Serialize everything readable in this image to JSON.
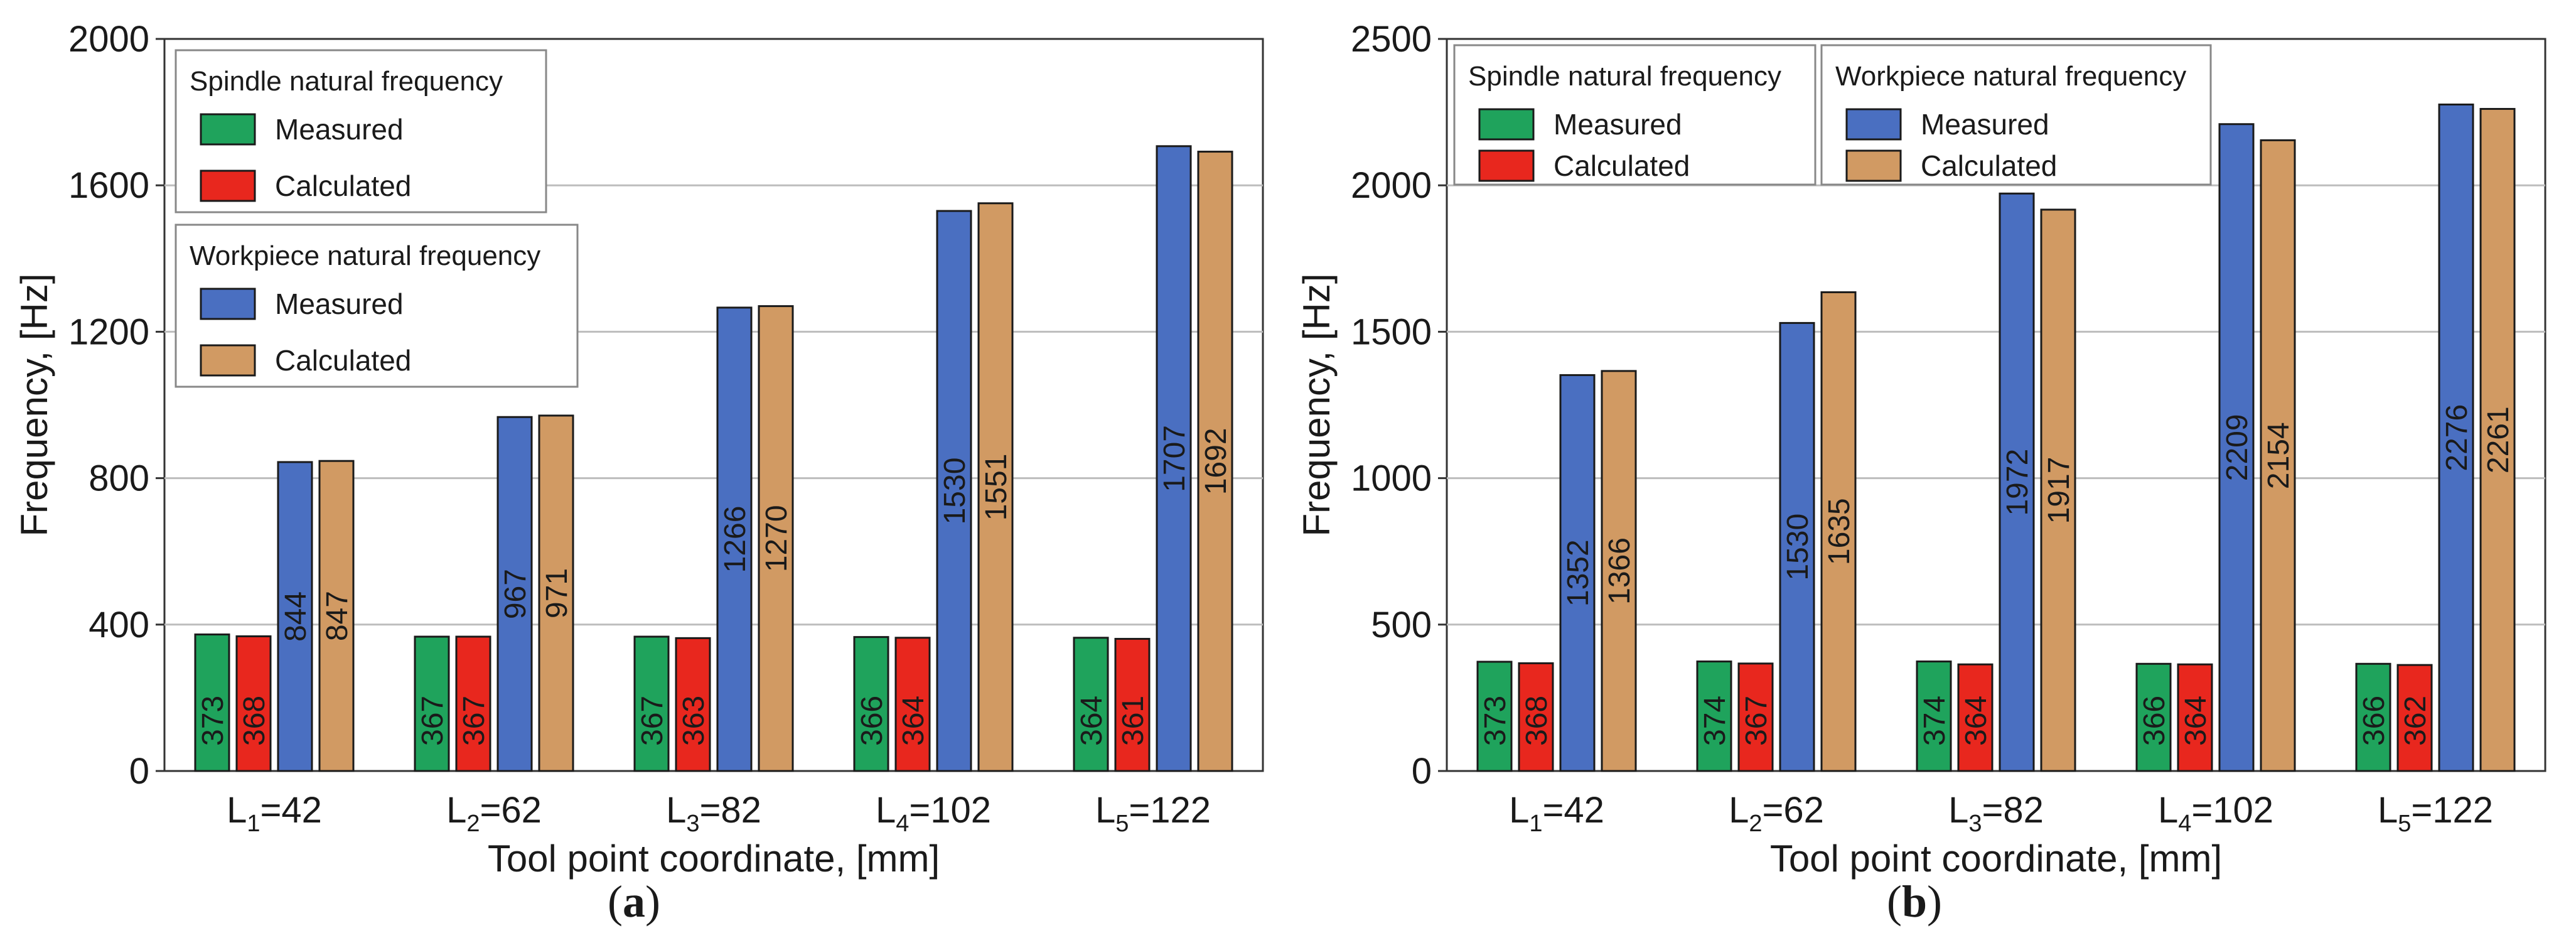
{
  "colors": {
    "spindle_measured": "#1fa35c",
    "spindle_calculated": "#e8271e",
    "workpiece_measured": "#4a6fc1",
    "workpiece_calculated": "#d19a63",
    "grid": "#bdbdbd",
    "axis": "#333333"
  },
  "chart_data": [
    {
      "type": "bar",
      "panel": "a",
      "panel_label": "a",
      "xlabel": "Tool point coordinate, [mm]",
      "ylabel": "Frequency, [Hz]",
      "ylim": [
        0,
        2000
      ],
      "yticks": [
        0,
        400,
        800,
        1200,
        1600,
        2000
      ],
      "ytick_labels": [
        "0",
        "400",
        "800",
        "1200",
        "1600",
        "2000"
      ],
      "categories": [
        {
          "base": "L",
          "sub": "1",
          "rest": "=42"
        },
        {
          "base": "L",
          "sub": "2",
          "rest": "=62"
        },
        {
          "base": "L",
          "sub": "3",
          "rest": "=82"
        },
        {
          "base": "L",
          "sub": "4",
          "rest": "=102"
        },
        {
          "base": "L",
          "sub": "5",
          "rest": "=122"
        }
      ],
      "series": [
        {
          "name": "Spindle natural frequency Measured",
          "color_key": "spindle_measured",
          "values": [
            373,
            367,
            367,
            366,
            364
          ]
        },
        {
          "name": "Spindle natural frequency Calculated",
          "color_key": "spindle_calculated",
          "values": [
            368,
            367,
            363,
            364,
            361
          ]
        },
        {
          "name": "Workpiece natural frequency Measured",
          "color_key": "workpiece_measured",
          "values": [
            844,
            967,
            1266,
            1530,
            1707
          ]
        },
        {
          "name": "Workpiece natural frequency Calculated",
          "color_key": "workpiece_calculated",
          "values": [
            847,
            971,
            1270,
            1551,
            1692
          ]
        }
      ],
      "legends": [
        {
          "title": "Spindle natural frequency",
          "entries": [
            {
              "label": "Measured",
              "color_key": "spindle_measured"
            },
            {
              "label": "Calculated",
              "color_key": "spindle_calculated"
            }
          ]
        },
        {
          "title": "Workpiece natural frequency",
          "entries": [
            {
              "label": "Measured",
              "color_key": "workpiece_measured"
            },
            {
              "label": "Calculated",
              "color_key": "workpiece_calculated"
            }
          ]
        }
      ],
      "legend_layout": "stacked-top-left",
      "grid": true
    },
    {
      "type": "bar",
      "panel": "b",
      "panel_label": "b",
      "xlabel": "Tool point coordinate, [mm]",
      "ylabel": "Frequency, [Hz]",
      "ylim": [
        0,
        2500
      ],
      "yticks": [
        0,
        500,
        1000,
        1500,
        2000,
        2500
      ],
      "ytick_labels": [
        "0",
        "500",
        "1000",
        "1500",
        "2000",
        "2500"
      ],
      "categories": [
        {
          "base": "L",
          "sub": "1",
          "rest": "=42"
        },
        {
          "base": "L",
          "sub": "2",
          "rest": "=62"
        },
        {
          "base": "L",
          "sub": "3",
          "rest": "=82"
        },
        {
          "base": "L",
          "sub": "4",
          "rest": "=102"
        },
        {
          "base": "L",
          "sub": "5",
          "rest": "=122"
        }
      ],
      "series": [
        {
          "name": "Spindle natural frequency Measured",
          "color_key": "spindle_measured",
          "values": [
            373,
            374,
            374,
            366,
            366
          ]
        },
        {
          "name": "Spindle natural frequency Calculated",
          "color_key": "spindle_calculated",
          "values": [
            368,
            367,
            364,
            364,
            362
          ]
        },
        {
          "name": "Workpiece natural frequency Measured",
          "color_key": "workpiece_measured",
          "values": [
            1352,
            1530,
            1972,
            2209,
            2276
          ]
        },
        {
          "name": "Workpiece natural frequency Calculated",
          "color_key": "workpiece_calculated",
          "values": [
            1366,
            1635,
            1917,
            2154,
            2261
          ]
        }
      ],
      "legends": [
        {
          "title": "Spindle natural frequency",
          "entries": [
            {
              "label": "Measured",
              "color_key": "spindle_measured"
            },
            {
              "label": "Calculated",
              "color_key": "spindle_calculated"
            }
          ]
        },
        {
          "title": "Workpiece natural frequency",
          "entries": [
            {
              "label": "Measured",
              "color_key": "workpiece_measured"
            },
            {
              "label": "Calculated",
              "color_key": "workpiece_calculated"
            }
          ]
        }
      ],
      "legend_layout": "side-by-side-top-left",
      "grid": true
    }
  ]
}
